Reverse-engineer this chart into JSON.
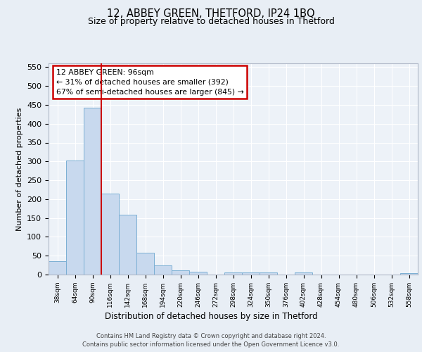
{
  "title1": "12, ABBEY GREEN, THETFORD, IP24 1BQ",
  "title2": "Size of property relative to detached houses in Thetford",
  "xlabel": "Distribution of detached houses by size in Thetford",
  "ylabel": "Number of detached properties",
  "bin_labels": [
    "38sqm",
    "64sqm",
    "90sqm",
    "116sqm",
    "142sqm",
    "168sqm",
    "194sqm",
    "220sqm",
    "246sqm",
    "272sqm",
    "298sqm",
    "324sqm",
    "350sqm",
    "376sqm",
    "402sqm",
    "428sqm",
    "454sqm",
    "480sqm",
    "506sqm",
    "532sqm",
    "558sqm"
  ],
  "bar_heights": [
    35,
    303,
    443,
    215,
    158,
    57,
    25,
    12,
    8,
    0,
    5,
    5,
    5,
    0,
    5,
    0,
    0,
    0,
    0,
    0,
    3
  ],
  "bar_color": "#c8d9ee",
  "bar_edge_color": "#7bafd4",
  "vline_color": "#cc0000",
  "annotation_line1": "12 ABBEY GREEN: 96sqm",
  "annotation_line2": "← 31% of detached houses are smaller (392)",
  "annotation_line3": "67% of semi-detached houses are larger (845) →",
  "annotation_box_color": "#cc0000",
  "ylim": [
    0,
    560
  ],
  "yticks": [
    0,
    50,
    100,
    150,
    200,
    250,
    300,
    350,
    400,
    450,
    500,
    550
  ],
  "bg_color": "#e8eef5",
  "plot_bg_color": "#edf2f8",
  "grid_color": "#ffffff",
  "footnote1": "Contains HM Land Registry data © Crown copyright and database right 2024.",
  "footnote2": "Contains public sector information licensed under the Open Government Licence v3.0."
}
